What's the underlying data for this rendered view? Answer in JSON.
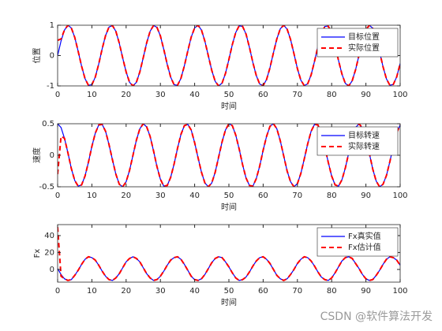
{
  "chart_data": [
    {
      "type": "line",
      "xlabel": "时间",
      "ylabel": "位置",
      "xlim": [
        0,
        100
      ],
      "ylim": [
        -1,
        1
      ],
      "xticks": [
        0,
        10,
        20,
        30,
        40,
        50,
        60,
        70,
        80,
        90,
        100
      ],
      "yticks": [
        -1,
        0,
        1
      ],
      "legend": "northeast",
      "x": [
        0,
        1,
        2,
        3,
        4,
        5,
        6,
        7,
        8,
        9,
        10,
        11,
        12,
        13,
        14,
        15,
        16,
        17,
        18,
        19,
        20,
        21,
        22,
        23,
        24,
        25,
        26,
        27,
        28,
        29,
        30,
        31,
        32,
        33,
        34,
        35,
        36,
        37,
        38,
        39,
        40,
        41,
        42,
        43,
        44,
        45,
        46,
        47,
        48,
        49,
        50,
        51,
        52,
        53,
        54,
        55,
        56,
        57,
        58,
        59,
        60,
        61,
        62,
        63,
        64,
        65,
        66,
        67,
        68,
        69,
        70,
        71,
        72,
        73,
        74,
        75,
        76,
        77,
        78,
        79,
        80,
        81,
        82,
        83,
        84,
        85,
        86,
        87,
        88,
        89,
        90,
        91,
        92,
        93,
        94,
        95,
        96,
        97,
        98,
        99,
        100
      ],
      "series": [
        {
          "name": "目标位置",
          "color": "#0000ff",
          "style": "solid",
          "values": [
            0,
            0.48,
            0.84,
            1.0,
            0.91,
            0.6,
            0.14,
            -0.35,
            -0.76,
            -0.98,
            -0.96,
            -0.71,
            -0.28,
            0.22,
            0.66,
            0.94,
            0.99,
            0.8,
            0.41,
            -0.08,
            -0.54,
            -0.88,
            -1.0,
            -0.88,
            -0.54,
            -0.07,
            0.42,
            0.8,
            0.99,
            0.93,
            0.65,
            0.2,
            -0.29,
            -0.71,
            -0.96,
            -0.98,
            -0.75,
            -0.34,
            0.15,
            0.61,
            0.91,
            1.0,
            0.84,
            0.47,
            -0.01,
            -0.49,
            -0.85,
            -1.0,
            -0.91,
            -0.59,
            -0.13,
            0.36,
            0.76,
            0.98,
            0.96,
            0.71,
            0.27,
            -0.23,
            -0.66,
            -0.94,
            -0.99,
            -0.79,
            -0.4,
            0.09,
            0.55,
            0.88,
            1.0,
            0.87,
            0.53,
            0.06,
            -0.43,
            -0.81,
            -0.99,
            -0.93,
            -0.64,
            -0.19,
            0.3,
            0.72,
            0.96,
            0.97,
            0.75,
            0.33,
            -0.16,
            -0.61,
            -0.92,
            -1.0,
            -0.83,
            -0.46,
            0.02,
            0.5,
            0.85,
            1.0,
            0.9,
            0.58,
            0.12,
            -0.37,
            -0.77,
            -0.98,
            -0.95,
            -0.7,
            -0.26
          ]
        },
        {
          "name": "实际位置",
          "color": "#ff0000",
          "style": "dashed",
          "values": [
            0.5,
            0.55,
            0.84,
            1.0,
            0.91,
            0.6,
            0.14,
            -0.35,
            -0.76,
            -0.98,
            -0.96,
            -0.71,
            -0.28,
            0.22,
            0.66,
            0.94,
            0.99,
            0.8,
            0.41,
            -0.08,
            -0.54,
            -0.88,
            -1.0,
            -0.88,
            -0.54,
            -0.07,
            0.42,
            0.8,
            0.99,
            0.93,
            0.65,
            0.2,
            -0.29,
            -0.71,
            -0.96,
            -0.98,
            -0.75,
            -0.34,
            0.15,
            0.61,
            0.91,
            1.0,
            0.84,
            0.47,
            -0.01,
            -0.49,
            -0.85,
            -1.0,
            -0.91,
            -0.59,
            -0.13,
            0.36,
            0.76,
            0.98,
            0.96,
            0.71,
            0.27,
            -0.23,
            -0.66,
            -0.94,
            -0.99,
            -0.79,
            -0.4,
            0.09,
            0.55,
            0.88,
            1.0,
            0.87,
            0.53,
            0.06,
            -0.43,
            -0.81,
            -0.99,
            -0.93,
            -0.64,
            -0.19,
            0.3,
            0.72,
            0.96,
            0.97,
            0.75,
            0.33,
            -0.16,
            -0.61,
            -0.92,
            -1.0,
            -0.83,
            -0.46,
            0.02,
            0.5,
            0.85,
            1.0,
            0.9,
            0.58,
            0.12,
            -0.37,
            -0.77,
            -0.98,
            -0.95,
            -0.7,
            -0.26
          ]
        }
      ]
    },
    {
      "type": "line",
      "xlabel": "时间",
      "ylabel": "速度",
      "xlim": [
        0,
        100
      ],
      "ylim": [
        -0.5,
        0.5
      ],
      "xticks": [
        0,
        10,
        20,
        30,
        40,
        50,
        60,
        70,
        80,
        90,
        100
      ],
      "yticks": [
        -0.5,
        0,
        0.5
      ],
      "legend": "northeast",
      "x": [
        0,
        1,
        2,
        3,
        4,
        5,
        6,
        7,
        8,
        9,
        10,
        11,
        12,
        13,
        14,
        15,
        16,
        17,
        18,
        19,
        20,
        21,
        22,
        23,
        24,
        25,
        26,
        27,
        28,
        29,
        30,
        31,
        32,
        33,
        34,
        35,
        36,
        37,
        38,
        39,
        40,
        41,
        42,
        43,
        44,
        45,
        46,
        47,
        48,
        49,
        50,
        51,
        52,
        53,
        54,
        55,
        56,
        57,
        58,
        59,
        60,
        61,
        62,
        63,
        64,
        65,
        66,
        67,
        68,
        69,
        70,
        71,
        72,
        73,
        74,
        75,
        76,
        77,
        78,
        79,
        80,
        81,
        82,
        83,
        84,
        85,
        86,
        87,
        88,
        89,
        90,
        91,
        92,
        93,
        94,
        95,
        96,
        97,
        98,
        99,
        100
      ],
      "series": [
        {
          "name": "目标转速",
          "color": "#0000ff",
          "style": "solid",
          "values": [
            0.5,
            0.44,
            0.27,
            0.04,
            -0.21,
            -0.4,
            -0.49,
            -0.47,
            -0.33,
            -0.11,
            0.14,
            0.35,
            0.48,
            0.49,
            0.38,
            0.17,
            -0.07,
            -0.3,
            -0.46,
            -0.5,
            -0.42,
            -0.24,
            0.0,
            0.24,
            0.42,
            0.5,
            0.45,
            0.3,
            0.07,
            -0.18,
            -0.38,
            -0.49,
            -0.48,
            -0.35,
            -0.14,
            0.11,
            0.33,
            0.47,
            0.49,
            0.4,
            0.2,
            -0.04,
            -0.27,
            -0.44,
            -0.5,
            -0.44,
            -0.27,
            -0.03,
            0.21,
            0.4,
            0.5,
            0.47,
            0.32,
            0.1,
            -0.15,
            -0.36,
            -0.48,
            -0.49,
            -0.37,
            -0.17,
            0.08,
            0.3,
            0.46,
            0.5,
            0.42,
            0.23,
            -0.01,
            -0.25,
            -0.42,
            -0.5,
            -0.45,
            -0.29,
            -0.06,
            0.18,
            0.38,
            0.49,
            0.48,
            0.35,
            0.13,
            -0.11,
            -0.33,
            -0.47,
            -0.49,
            -0.39,
            -0.2,
            0.04,
            0.28,
            0.44,
            0.5,
            0.43,
            0.26,
            0.03,
            -0.22,
            -0.41,
            -0.5,
            -0.46,
            -0.32,
            -0.1,
            0.15,
            0.36,
            0.48
          ]
        },
        {
          "name": "实际转速",
          "color": "#ff0000",
          "style": "dashed",
          "values": [
            -0.3,
            0.3,
            0.27,
            0.04,
            -0.21,
            -0.4,
            -0.49,
            -0.47,
            -0.33,
            -0.11,
            0.14,
            0.35,
            0.48,
            0.49,
            0.38,
            0.17,
            -0.07,
            -0.3,
            -0.46,
            -0.5,
            -0.42,
            -0.24,
            0.0,
            0.24,
            0.42,
            0.5,
            0.45,
            0.3,
            0.07,
            -0.18,
            -0.38,
            -0.49,
            -0.48,
            -0.35,
            -0.14,
            0.11,
            0.33,
            0.47,
            0.49,
            0.4,
            0.2,
            -0.04,
            -0.27,
            -0.44,
            -0.5,
            -0.44,
            -0.27,
            -0.03,
            0.21,
            0.4,
            0.5,
            0.47,
            0.32,
            0.1,
            -0.15,
            -0.36,
            -0.48,
            -0.49,
            -0.37,
            -0.17,
            0.08,
            0.3,
            0.46,
            0.5,
            0.42,
            0.23,
            -0.01,
            -0.25,
            -0.42,
            -0.5,
            -0.45,
            -0.29,
            -0.06,
            0.18,
            0.38,
            0.49,
            0.48,
            0.35,
            0.13,
            -0.11,
            -0.33,
            -0.47,
            -0.49,
            -0.39,
            -0.2,
            0.04,
            0.28,
            0.44,
            0.5,
            0.43,
            0.26,
            0.03,
            -0.22,
            -0.41,
            -0.5,
            -0.46,
            -0.32,
            -0.1,
            0.15,
            0.36,
            0.48
          ]
        }
      ]
    },
    {
      "type": "line",
      "xlabel": "时间",
      "ylabel": "Fx",
      "xlim": [
        0,
        100
      ],
      "ylim": [
        -15,
        53
      ],
      "xticks": [
        0,
        10,
        20,
        30,
        40,
        50,
        60,
        70,
        80,
        90,
        100
      ],
      "yticks": [
        0,
        20,
        40
      ],
      "legend": "northeast",
      "x": [
        0,
        1,
        2,
        3,
        4,
        5,
        6,
        7,
        8,
        9,
        10,
        11,
        12,
        13,
        14,
        15,
        16,
        17,
        18,
        19,
        20,
        21,
        22,
        23,
        24,
        25,
        26,
        27,
        28,
        29,
        30,
        31,
        32,
        33,
        34,
        35,
        36,
        37,
        38,
        39,
        40,
        41,
        42,
        43,
        44,
        45,
        46,
        47,
        48,
        49,
        50,
        51,
        52,
        53,
        54,
        55,
        56,
        57,
        58,
        59,
        60,
        61,
        62,
        63,
        64,
        65,
        66,
        67,
        68,
        69,
        70,
        71,
        72,
        73,
        74,
        75,
        76,
        77,
        78,
        79,
        80,
        81,
        82,
        83,
        84,
        85,
        86,
        87,
        88,
        89,
        90,
        91,
        92,
        93,
        94,
        95,
        96,
        97,
        98,
        99,
        100
      ],
      "series": [
        {
          "name": "Fx真实值",
          "color": "#0000ff",
          "style": "solid",
          "values": [
            1,
            -6,
            -11,
            -13,
            -12,
            -7,
            -1,
            6,
            12,
            15,
            14,
            11,
            5,
            -2,
            -8,
            -12,
            -13,
            -10,
            -5,
            2,
            9,
            13,
            15,
            13,
            9,
            2,
            -5,
            -10,
            -13,
            -12,
            -8,
            -2,
            5,
            11,
            14,
            15,
            12,
            6,
            -1,
            -8,
            -12,
            -13,
            -11,
            -6,
            1,
            8,
            13,
            15,
            14,
            9,
            3,
            -4,
            -10,
            -13,
            -12,
            -9,
            -3,
            4,
            10,
            14,
            15,
            12,
            7,
            0,
            -7,
            -11,
            -13,
            -11,
            -6,
            0,
            7,
            12,
            15,
            14,
            10,
            4,
            -3,
            -9,
            -12,
            -13,
            -10,
            -4,
            3,
            10,
            14,
            15,
            13,
            7,
            1,
            -6,
            -11,
            -13,
            -12,
            -7,
            -1,
            6,
            12,
            15,
            14,
            11,
            5
          ]
        },
        {
          "name": "Fx估计值",
          "color": "#ff0000",
          "style": "dashed",
          "values": [
            50,
            -8,
            -11,
            -13,
            -12,
            -7,
            -1,
            6,
            12,
            15,
            14,
            11,
            5,
            -2,
            -8,
            -12,
            -13,
            -10,
            -5,
            2,
            9,
            13,
            15,
            13,
            9,
            2,
            -5,
            -10,
            -13,
            -12,
            -8,
            -2,
            5,
            11,
            14,
            15,
            12,
            6,
            -1,
            -8,
            -12,
            -13,
            -11,
            -6,
            1,
            8,
            13,
            15,
            14,
            9,
            3,
            -4,
            -10,
            -13,
            -12,
            -9,
            -3,
            4,
            10,
            14,
            15,
            12,
            7,
            0,
            -7,
            -11,
            -13,
            -11,
            -6,
            0,
            7,
            12,
            15,
            14,
            10,
            4,
            -3,
            -9,
            -12,
            -13,
            -10,
            -4,
            3,
            10,
            14,
            15,
            13,
            7,
            1,
            -6,
            -11,
            -13,
            -12,
            -7,
            -1,
            6,
            12,
            15,
            14,
            11,
            5
          ]
        }
      ]
    }
  ],
  "watermark": "CSDN @软件算法开发"
}
